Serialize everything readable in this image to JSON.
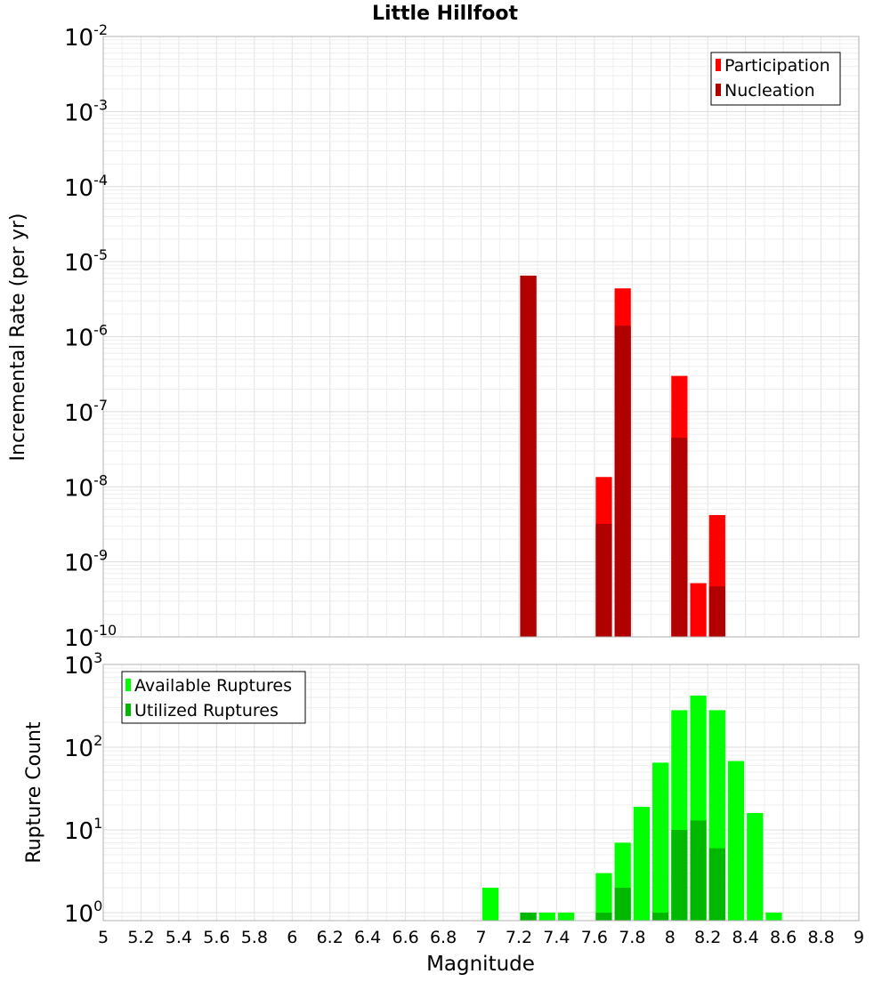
{
  "chart_data": [
    {
      "type": "bar",
      "title": "Little Hillfoot",
      "xlabel": "",
      "ylabel": "Incremental Rate (per yr)",
      "yscale": "log",
      "xlim": [
        5,
        9
      ],
      "ylim": [
        1e-10,
        0.01
      ],
      "bar_width": 0.1,
      "grid": true,
      "legend_position": "top-right",
      "y_ticks": [
        {
          "value": 1e-10,
          "base": "10",
          "exp": "-10"
        },
        {
          "value": 1e-09,
          "base": "10",
          "exp": "-9"
        },
        {
          "value": 1e-08,
          "base": "10",
          "exp": "-8"
        },
        {
          "value": 1e-07,
          "base": "10",
          "exp": "-7"
        },
        {
          "value": 1e-06,
          "base": "10",
          "exp": "-6"
        },
        {
          "value": 1e-05,
          "base": "10",
          "exp": "-5"
        },
        {
          "value": 0.0001,
          "base": "10",
          "exp": "-4"
        },
        {
          "value": 0.001,
          "base": "10",
          "exp": "-3"
        },
        {
          "value": 0.01,
          "base": "10",
          "exp": "-2"
        }
      ],
      "series": [
        {
          "name": "Participation",
          "color": "#ff0000",
          "x": [
            7.25,
            7.65,
            7.75,
            8.05,
            8.15,
            8.25
          ],
          "values": [
            6.5e-06,
            1.35e-08,
            4.4e-06,
            3e-07,
            5.2e-10,
            4.2e-09
          ]
        },
        {
          "name": "Nucleation",
          "color": "#b00000",
          "x": [
            7.25,
            7.65,
            7.75,
            8.05,
            8.25
          ],
          "values": [
            6.5e-06,
            3.2e-09,
            1.4e-06,
            4.5e-08,
            4.7e-10
          ]
        }
      ]
    },
    {
      "type": "bar",
      "title": "",
      "xlabel": "Magnitude",
      "ylabel": "Rupture Count",
      "yscale": "log",
      "xlim": [
        5,
        9
      ],
      "ylim": [
        0.8,
        1000
      ],
      "bar_width": 0.1,
      "grid": true,
      "legend_position": "top-left",
      "x_ticks": [
        "5",
        "5.2",
        "5.4",
        "5.6",
        "5.8",
        "6",
        "6.2",
        "6.4",
        "6.6",
        "6.8",
        "7",
        "7.2",
        "7.4",
        "7.6",
        "7.8",
        "8",
        "8.2",
        "8.4",
        "8.6",
        "8.8",
        "9"
      ],
      "y_ticks": [
        {
          "value": 1,
          "base": "10",
          "exp": "0"
        },
        {
          "value": 10,
          "base": "10",
          "exp": "1"
        },
        {
          "value": 100,
          "base": "10",
          "exp": "2"
        },
        {
          "value": 1000,
          "base": "10",
          "exp": "3"
        }
      ],
      "series": [
        {
          "name": "Available Ruptures",
          "color": "#00ff00",
          "x": [
            7.05,
            7.25,
            7.35,
            7.45,
            7.65,
            7.75,
            7.85,
            7.95,
            8.05,
            8.15,
            8.25,
            8.35,
            8.45,
            8.55
          ],
          "values": [
            2,
            1,
            1,
            1,
            3,
            7,
            19,
            65,
            280,
            420,
            280,
            68,
            16,
            1
          ]
        },
        {
          "name": "Utilized Ruptures",
          "color": "#00b800",
          "x": [
            7.25,
            7.65,
            7.75,
            7.95,
            8.05,
            8.15,
            8.25
          ],
          "values": [
            1,
            1,
            2,
            1,
            10,
            13,
            6
          ]
        }
      ]
    }
  ]
}
